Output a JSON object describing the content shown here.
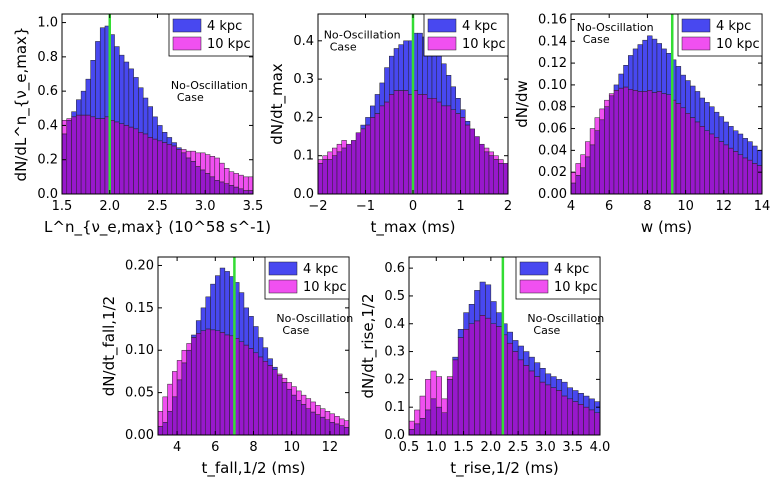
{
  "chart_data": [
    {
      "type": "bar",
      "panel": "top-left",
      "xlabel": "L^n_{ν_e,max} (10^58 s^-1)",
      "ylabel": "dN/dL^n_{ν_e,max}",
      "xlim": [
        1.5,
        3.5
      ],
      "ylim": [
        0,
        1.05
      ],
      "xticks": [
        "1.5",
        "2.0",
        "2.5",
        "3.0",
        "3.5"
      ],
      "yticks": [
        "0.0",
        "0.2",
        "0.4",
        "0.6",
        "0.8",
        "1.0"
      ],
      "bin_start": 1.5,
      "bin_width": 0.05,
      "marker_x": 2.0,
      "legend_position": "top-right",
      "annotation": [
        "No-Oscillation",
        "Case"
      ],
      "series": [
        {
          "name": "4 kpc",
          "values": [
            0.35,
            0.43,
            0.48,
            0.55,
            0.6,
            0.67,
            0.78,
            0.89,
            0.97,
            0.98,
            0.93,
            0.86,
            0.81,
            0.77,
            0.73,
            0.68,
            0.62,
            0.56,
            0.51,
            0.45,
            0.4,
            0.36,
            0.33,
            0.3,
            0.27,
            0.24,
            0.21,
            0.19,
            0.16,
            0.14,
            0.12,
            0.1,
            0.08,
            0.07,
            0.06,
            0.05,
            0.04,
            0.03,
            0.02,
            0.02
          ]
        },
        {
          "name": "10 kpc",
          "values": [
            0.43,
            0.44,
            0.45,
            0.46,
            0.46,
            0.46,
            0.45,
            0.44,
            0.44,
            0.45,
            0.43,
            0.42,
            0.41,
            0.4,
            0.39,
            0.38,
            0.36,
            0.35,
            0.33,
            0.32,
            0.31,
            0.3,
            0.29,
            0.28,
            0.26,
            0.26,
            0.25,
            0.25,
            0.24,
            0.24,
            0.23,
            0.22,
            0.21,
            0.18,
            0.15,
            0.13,
            0.12,
            0.11,
            0.1,
            0.1
          ]
        }
      ]
    },
    {
      "type": "bar",
      "panel": "top-middle",
      "xlabel": "t_max (ms)",
      "ylabel": "dN/dt_max",
      "xlim": [
        -2,
        2
      ],
      "ylim": [
        0,
        0.47
      ],
      "xticks": [
        "−2",
        "−1",
        "0",
        "1",
        "2"
      ],
      "yticks": [
        "0.0",
        "0.1",
        "0.2",
        "0.3",
        "0.4"
      ],
      "bin_start": -2,
      "bin_width": 0.1,
      "marker_x": 0.0,
      "legend_position": "top-right",
      "annotation": [
        "No-Oscillation",
        "Case"
      ],
      "series": [
        {
          "name": "4 kpc",
          "values": [
            0.08,
            0.09,
            0.09,
            0.1,
            0.11,
            0.12,
            0.13,
            0.14,
            0.16,
            0.18,
            0.2,
            0.23,
            0.26,
            0.29,
            0.33,
            0.36,
            0.38,
            0.39,
            0.4,
            0.4,
            0.42,
            0.42,
            0.41,
            0.4,
            0.39,
            0.37,
            0.34,
            0.31,
            0.28,
            0.25,
            0.22,
            0.19,
            0.17,
            0.15,
            0.13,
            0.11,
            0.1,
            0.09,
            0.08,
            0.08
          ]
        },
        {
          "name": "10 kpc",
          "values": [
            0.09,
            0.1,
            0.11,
            0.12,
            0.13,
            0.14,
            0.13,
            0.14,
            0.16,
            0.17,
            0.18,
            0.2,
            0.21,
            0.23,
            0.24,
            0.26,
            0.27,
            0.27,
            0.27,
            0.26,
            0.27,
            0.26,
            0.26,
            0.25,
            0.25,
            0.24,
            0.23,
            0.23,
            0.22,
            0.21,
            0.2,
            0.18,
            0.17,
            0.15,
            0.13,
            0.12,
            0.11,
            0.1,
            0.09,
            0.08
          ]
        }
      ]
    },
    {
      "type": "bar",
      "panel": "top-right",
      "xlabel": "w (ms)",
      "ylabel": "dN/dw",
      "xlim": [
        4,
        14
      ],
      "ylim": [
        0,
        0.165
      ],
      "xticks": [
        "4",
        "6",
        "8",
        "10",
        "12",
        "14"
      ],
      "yticks": [
        "0.00",
        "0.02",
        "0.04",
        "0.06",
        "0.08",
        "0.10",
        "0.12",
        "0.14",
        "0.16"
      ],
      "bin_start": 4,
      "bin_width": 0.25,
      "marker_x": 9.3,
      "legend_position": "top-right",
      "annotation": [
        "No-Oscillation",
        "Case"
      ],
      "series": [
        {
          "name": "4 kpc",
          "values": [
            0.01,
            0.017,
            0.024,
            0.034,
            0.045,
            0.058,
            0.068,
            0.08,
            0.09,
            0.1,
            0.11,
            0.118,
            0.127,
            0.133,
            0.137,
            0.141,
            0.145,
            0.142,
            0.138,
            0.133,
            0.129,
            0.123,
            0.117,
            0.109,
            0.104,
            0.099,
            0.094,
            0.088,
            0.084,
            0.08,
            0.075,
            0.071,
            0.066,
            0.062,
            0.058,
            0.055,
            0.051,
            0.048,
            0.044,
            0.04
          ]
        },
        {
          "name": "10 kpc",
          "values": [
            0.02,
            0.028,
            0.036,
            0.048,
            0.06,
            0.07,
            0.078,
            0.086,
            0.092,
            0.095,
            0.097,
            0.098,
            0.096,
            0.095,
            0.094,
            0.094,
            0.095,
            0.093,
            0.094,
            0.092,
            0.091,
            0.086,
            0.083,
            0.079,
            0.074,
            0.07,
            0.066,
            0.062,
            0.058,
            0.055,
            0.052,
            0.048,
            0.045,
            0.042,
            0.039,
            0.036,
            0.033,
            0.031,
            0.028,
            0.026
          ]
        }
      ]
    },
    {
      "type": "bar",
      "panel": "bottom-left",
      "xlabel": "t_fall,1/2 (ms)",
      "ylabel": "dN/dt_fall,1/2",
      "xlim": [
        3,
        13
      ],
      "ylim": [
        0,
        0.21
      ],
      "xticks": [
        "4",
        "6",
        "8",
        "10",
        "12"
      ],
      "yticks": [
        "0.00",
        "0.05",
        "0.10",
        "0.15",
        "0.20"
      ],
      "bin_start": 3,
      "bin_width": 0.25,
      "marker_x": 7.0,
      "legend_position": "top-right",
      "annotation": [
        "No-Oscillation",
        "Case"
      ],
      "series": [
        {
          "name": "4 kpc",
          "values": [
            0.01,
            0.015,
            0.028,
            0.045,
            0.065,
            0.085,
            0.1,
            0.118,
            0.135,
            0.15,
            0.163,
            0.178,
            0.188,
            0.197,
            0.193,
            0.187,
            0.18,
            0.168,
            0.15,
            0.14,
            0.128,
            0.115,
            0.103,
            0.09,
            0.08,
            0.07,
            0.062,
            0.054,
            0.047,
            0.041,
            0.036,
            0.031,
            0.027,
            0.024,
            0.021,
            0.018,
            0.015,
            0.013,
            0.011,
            0.009
          ]
        },
        {
          "name": "10 kpc",
          "values": [
            0.028,
            0.045,
            0.06,
            0.075,
            0.088,
            0.1,
            0.108,
            0.115,
            0.12,
            0.123,
            0.125,
            0.124,
            0.123,
            0.121,
            0.118,
            0.117,
            0.114,
            0.11,
            0.106,
            0.102,
            0.097,
            0.092,
            0.087,
            0.082,
            0.077,
            0.072,
            0.067,
            0.062,
            0.057,
            0.052,
            0.047,
            0.043,
            0.039,
            0.035,
            0.031,
            0.028,
            0.025,
            0.022,
            0.019,
            0.017
          ]
        }
      ]
    },
    {
      "type": "bar",
      "panel": "bottom-right",
      "xlabel": "t_rise,1/2 (ms)",
      "ylabel": "dN/dt_rise,1/2",
      "xlim": [
        0.5,
        4.0
      ],
      "ylim": [
        0,
        0.64
      ],
      "xticks": [
        "0.5",
        "1.0",
        "1.5",
        "2.0",
        "2.5",
        "3.0",
        "3.5",
        "4.0"
      ],
      "yticks": [
        "0.0",
        "0.1",
        "0.2",
        "0.3",
        "0.4",
        "0.5",
        "0.6"
      ],
      "bin_start": 0.5,
      "bin_width": 0.1,
      "marker_x": 2.22,
      "legend_position": "top-right",
      "annotation": [
        "No-Oscillation",
        "Case"
      ],
      "series": [
        {
          "name": "4 kpc",
          "values": [
            0.02,
            0.04,
            0.06,
            0.09,
            0.13,
            0.1,
            0.08,
            0.2,
            0.28,
            0.38,
            0.44,
            0.47,
            0.52,
            0.55,
            0.54,
            0.48,
            0.44,
            0.4,
            0.37,
            0.34,
            0.32,
            0.3,
            0.28,
            0.26,
            0.24,
            0.22,
            0.21,
            0.2,
            0.19,
            0.17,
            0.16,
            0.15,
            0.14,
            0.13,
            0.12
          ]
        },
        {
          "name": "10 kpc",
          "values": [
            0.05,
            0.09,
            0.14,
            0.2,
            0.23,
            0.21,
            0.13,
            0.21,
            0.27,
            0.35,
            0.38,
            0.4,
            0.41,
            0.43,
            0.42,
            0.4,
            0.39,
            0.36,
            0.33,
            0.3,
            0.27,
            0.25,
            0.23,
            0.21,
            0.19,
            0.18,
            0.17,
            0.16,
            0.14,
            0.13,
            0.12,
            0.11,
            0.1,
            0.09,
            0.08
          ]
        }
      ]
    }
  ],
  "colors": {
    "series_4kpc": "#4848f0",
    "series_10kpc": "#f050f0",
    "overlap": "#9818cc",
    "marker": "#33dd33"
  }
}
